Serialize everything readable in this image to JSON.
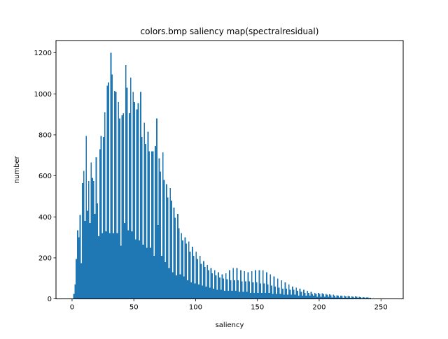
{
  "chart_data": {
    "type": "bar",
    "title": "colors.bmp saliency map(spectralresidual)",
    "xlabel": "saliency",
    "ylabel": "number",
    "xlim": [
      -13,
      268
    ],
    "ylim": [
      0,
      1260
    ],
    "xticks": [
      0,
      50,
      100,
      150,
      200,
      250
    ],
    "yticks": [
      0,
      200,
      400,
      600,
      800,
      1000,
      1200
    ],
    "bar_color": "#1f77b4",
    "grid": false,
    "legend": "none",
    "bin_width": 1,
    "bins_start": 0,
    "values": [
      0,
      25,
      70,
      195,
      335,
      300,
      410,
      175,
      565,
      625,
      380,
      795,
      430,
      575,
      370,
      665,
      590,
      575,
      415,
      690,
      465,
      305,
      730,
      795,
      320,
      790,
      910,
      330,
      1040,
      1055,
      320,
      1200,
      1095,
      320,
      1015,
      1010,
      320,
      960,
      880,
      260,
      895,
      905,
      370,
      1140,
      1030,
      335,
      905,
      1080,
      330,
      1010,
      960,
      290,
      925,
      955,
      285,
      1010,
      790,
      265,
      860,
      755,
      250,
      815,
      720,
      250,
      720,
      720,
      210,
      745,
      880,
      360,
      685,
      620,
      210,
      715,
      580,
      180,
      560,
      495,
      150,
      540,
      480,
      130,
      445,
      395,
      115,
      415,
      345,
      120,
      320,
      285,
      110,
      300,
      270,
      90,
      280,
      230,
      80,
      255,
      210,
      75,
      230,
      195,
      70,
      210,
      170,
      65,
      185,
      155,
      60,
      165,
      140,
      55,
      150,
      125,
      50,
      140,
      115,
      45,
      130,
      105,
      45,
      120,
      100,
      40,
      125,
      95,
      40,
      140,
      90,
      40,
      150,
      90,
      40,
      150,
      90,
      35,
      140,
      85,
      35,
      135,
      85,
      35,
      130,
      85,
      30,
      135,
      80,
      30,
      140,
      80,
      30,
      140,
      75,
      30,
      140,
      75,
      30,
      130,
      70,
      30,
      120,
      65,
      25,
      110,
      60,
      25,
      100,
      55,
      25,
      90,
      50,
      20,
      80,
      50,
      20,
      70,
      45,
      20,
      60,
      45,
      20,
      55,
      40,
      15,
      50,
      35,
      15,
      45,
      30,
      15,
      40,
      30,
      15,
      35,
      25,
      15,
      30,
      25,
      10,
      30,
      25,
      10,
      28,
      22,
      10,
      25,
      20,
      10,
      22,
      18,
      8,
      20,
      16,
      8,
      18,
      15,
      8,
      16,
      14,
      6,
      15,
      13,
      6,
      14,
      12,
      6,
      12,
      11,
      5,
      12,
      10,
      5,
      10,
      9,
      4,
      9,
      8,
      4,
      8,
      7,
      3,
      6
    ]
  }
}
